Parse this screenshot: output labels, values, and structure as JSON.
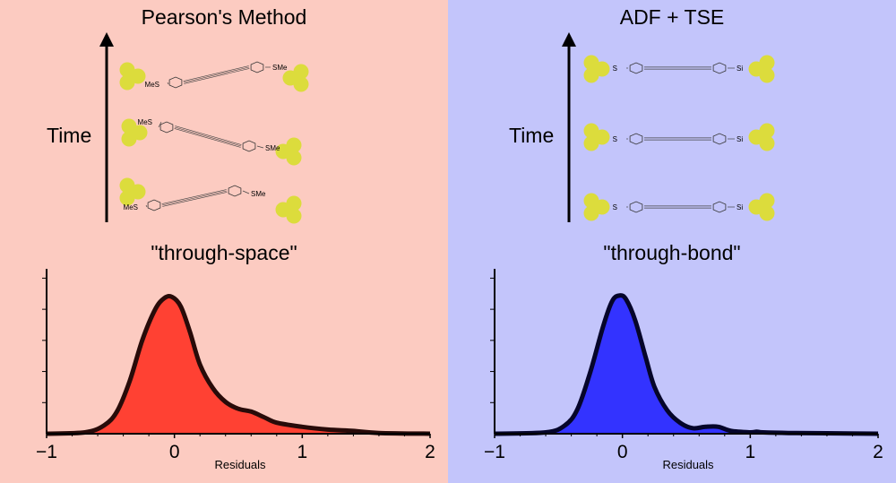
{
  "colors": {
    "left_background": "#fccbc1",
    "right_background": "#c3c5fb",
    "left_fill": "#ff4133",
    "right_fill": "#3333ff",
    "left_outline": "#280b09",
    "right_outline": "#05052a",
    "gold_atom": "#dcdc3c"
  },
  "left": {
    "title": "Pearson's Method",
    "time_label": "Time",
    "subtitle": "\"through-space\"",
    "molecule_end_label": "MeS",
    "molecule_end_label_2": "SMe"
  },
  "right": {
    "title": "ADF + TSE",
    "time_label": "Time",
    "subtitle": "\"through-bond\"",
    "molecule_end_label": "S",
    "molecule_end_label_2": "Si"
  },
  "chart_data": [
    {
      "type": "area",
      "panel": "left",
      "xlabel": "Residuals",
      "xlim": [
        -1,
        2
      ],
      "xticks": [
        "−1",
        "0",
        "1",
        "2"
      ],
      "ylim": [
        0,
        1.05
      ],
      "series": [
        {
          "x": [
            -1.0,
            -0.7,
            -0.55,
            -0.45,
            -0.35,
            -0.25,
            -0.15,
            -0.08,
            -0.02,
            0.05,
            0.12,
            0.2,
            0.3,
            0.4,
            0.5,
            0.6,
            0.7,
            0.8,
            1.0,
            1.2,
            1.4,
            1.6,
            2.0
          ],
          "values": [
            0.0,
            0.01,
            0.06,
            0.16,
            0.38,
            0.68,
            0.9,
            0.98,
            0.99,
            0.92,
            0.74,
            0.5,
            0.33,
            0.23,
            0.18,
            0.16,
            0.12,
            0.08,
            0.05,
            0.03,
            0.02,
            0.005,
            0.0
          ]
        }
      ]
    },
    {
      "type": "area",
      "panel": "right",
      "xlabel": "Residuals",
      "xlim": [
        -1,
        2
      ],
      "xticks": [
        "−1",
        "0",
        "1",
        "2"
      ],
      "ylim": [
        0,
        1.05
      ],
      "series": [
        {
          "x": [
            -1.0,
            -0.6,
            -0.45,
            -0.35,
            -0.25,
            -0.15,
            -0.08,
            -0.02,
            0.03,
            0.1,
            0.18,
            0.25,
            0.35,
            0.45,
            0.55,
            0.65,
            0.75,
            0.85,
            1.0,
            1.05,
            1.1,
            1.3,
            1.6,
            2.0
          ],
          "values": [
            0.0,
            0.01,
            0.06,
            0.18,
            0.45,
            0.78,
            0.96,
            1.0,
            0.97,
            0.82,
            0.56,
            0.34,
            0.17,
            0.08,
            0.04,
            0.05,
            0.05,
            0.02,
            0.01,
            0.015,
            0.01,
            0.005,
            0.003,
            0.0
          ]
        }
      ]
    }
  ]
}
